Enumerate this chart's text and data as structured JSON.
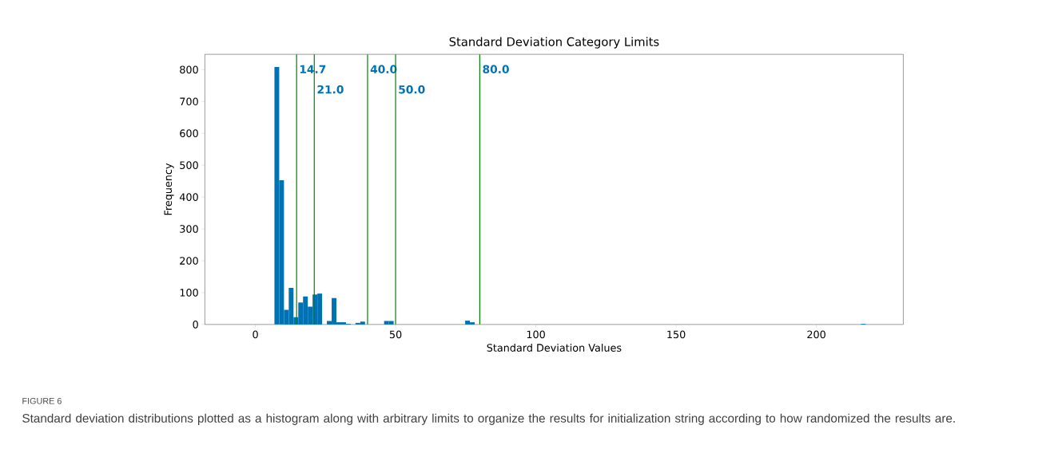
{
  "chart_data": {
    "type": "histogram",
    "title": "Standard Deviation Category Limits",
    "xlabel": "Standard Deviation Values",
    "ylabel": "Frequency",
    "bins": [
      6.8,
      8.5,
      10.2,
      11.9,
      13.6,
      15.3,
      17,
      18.7,
      20.4,
      22.1,
      23.8,
      25.5,
      27.2,
      28.9,
      30.6,
      32.3,
      34,
      35.7,
      37.4,
      39.1,
      40.8,
      42.5,
      44.2,
      45.9,
      47.6,
      49.3,
      51,
      52.7,
      54.4,
      56.1,
      57.8,
      59.5,
      61.2,
      62.9,
      64.6,
      66.3,
      68,
      69.7,
      71.4,
      73.1,
      74.8,
      76.5,
      78.2,
      79.9,
      81.6,
      83.3,
      85,
      86.7,
      88.4,
      90.1,
      91.8,
      93.5,
      95.2,
      96.9,
      98.6,
      100.3,
      102,
      103.7,
      105.4,
      107.1,
      108.8,
      110.5,
      112.2,
      113.9,
      115.6,
      117.3,
      119,
      120.7,
      122.4,
      124.1,
      125.8,
      127.5,
      129.2,
      130.9,
      132.6,
      134.3,
      136,
      137.7,
      139.4,
      141.1,
      142.8,
      144.5,
      146.2,
      147.9,
      149.6,
      151.3,
      153,
      154.7,
      156.4,
      158.1,
      159.8,
      161.5,
      163.2,
      164.9,
      166.6,
      168.3,
      170,
      171.7,
      173.4,
      175.1,
      176.8,
      178.5,
      180.2,
      181.9,
      183.6,
      185.3,
      187,
      188.7,
      190.4,
      192.1,
      193.8,
      195.5,
      197.2,
      198.9,
      200.6,
      202.3,
      204,
      205.7,
      207.4,
      209.1,
      210.8,
      212.5,
      214.2,
      215.9,
      217.6
    ],
    "values": [
      808,
      453,
      46,
      115,
      23,
      69,
      88,
      56,
      94,
      97,
      0,
      11,
      83,
      7,
      7,
      2,
      0,
      5,
      9,
      0,
      0,
      0,
      0,
      11,
      11,
      0,
      0,
      0,
      0,
      0,
      0,
      0,
      0,
      0,
      0,
      0,
      0,
      0,
      0,
      0,
      12,
      7,
      0,
      0,
      0,
      0,
      0,
      0,
      0,
      0,
      0,
      0,
      0,
      0,
      0,
      0,
      0,
      0,
      0,
      0,
      0,
      0,
      0,
      0,
      0,
      0,
      0,
      0,
      0,
      0,
      0,
      0,
      0,
      0,
      0,
      0,
      0,
      0,
      0,
      0,
      0,
      0,
      0,
      0,
      0,
      0,
      0,
      0,
      0,
      0,
      0,
      0,
      0,
      0,
      0,
      0,
      0,
      0,
      0,
      0,
      0,
      0,
      0,
      0,
      0,
      0,
      0,
      0,
      0,
      0,
      0,
      0,
      0,
      0,
      0,
      0,
      0,
      0,
      0,
      0,
      0,
      0,
      0,
      2
    ],
    "color": "#0072b2",
    "xlim": [
      -18,
      231
    ],
    "ylim": [
      0,
      848
    ],
    "xticks": [
      0,
      50,
      100,
      150,
      200
    ],
    "yticks": [
      0,
      100,
      200,
      300,
      400,
      500,
      600,
      700,
      800
    ],
    "ref_lines": [
      {
        "axis": "x",
        "value": 14.7,
        "label": "14.7",
        "color": "#008000"
      },
      {
        "axis": "x",
        "value": 21.0,
        "label": "21.0",
        "color": "#008000"
      },
      {
        "axis": "x",
        "value": 40.0,
        "label": "40.0",
        "color": "#008000"
      },
      {
        "axis": "x",
        "value": 50.0,
        "label": "50.0",
        "color": "#008000"
      },
      {
        "axis": "x",
        "value": 80.0,
        "label": "80.0",
        "color": "#008000"
      }
    ],
    "grid": false,
    "annotations": [
      "FIGURE 6",
      "Standard deviation distributions plotted as a histogram along with arbitrary limits to organize the results for initialization string according to how randomized the results are."
    ]
  }
}
